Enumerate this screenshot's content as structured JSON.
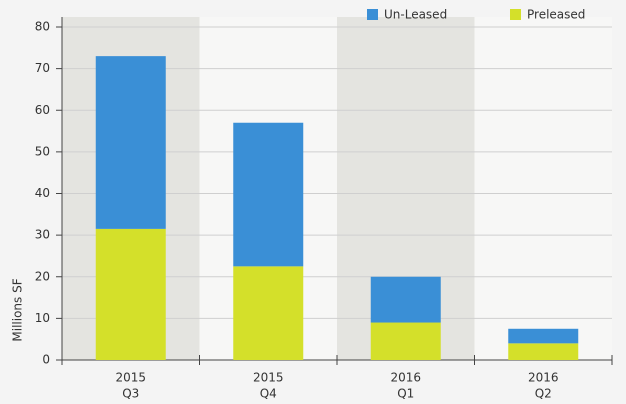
{
  "chart_data": {
    "type": "stacked_bar",
    "y_label": "Millions SF",
    "categories": [
      [
        "2015",
        "Q3"
      ],
      [
        "2015",
        "Q4"
      ],
      [
        "2016",
        "Q1"
      ],
      [
        "2016",
        "Q2"
      ]
    ],
    "series": [
      {
        "name": "Preleased",
        "color": "#d4e02a",
        "values": [
          31.5,
          22.5,
          9,
          4
        ]
      },
      {
        "name": "Un-Leased",
        "color": "#3a8fd6",
        "values": [
          41.5,
          34.5,
          11,
          3.5
        ]
      }
    ],
    "ylim": [
      0,
      80
    ],
    "yticks": [
      0,
      10,
      20,
      30,
      40,
      50,
      60,
      70,
      80
    ],
    "grid": true,
    "legend": "top-right"
  }
}
